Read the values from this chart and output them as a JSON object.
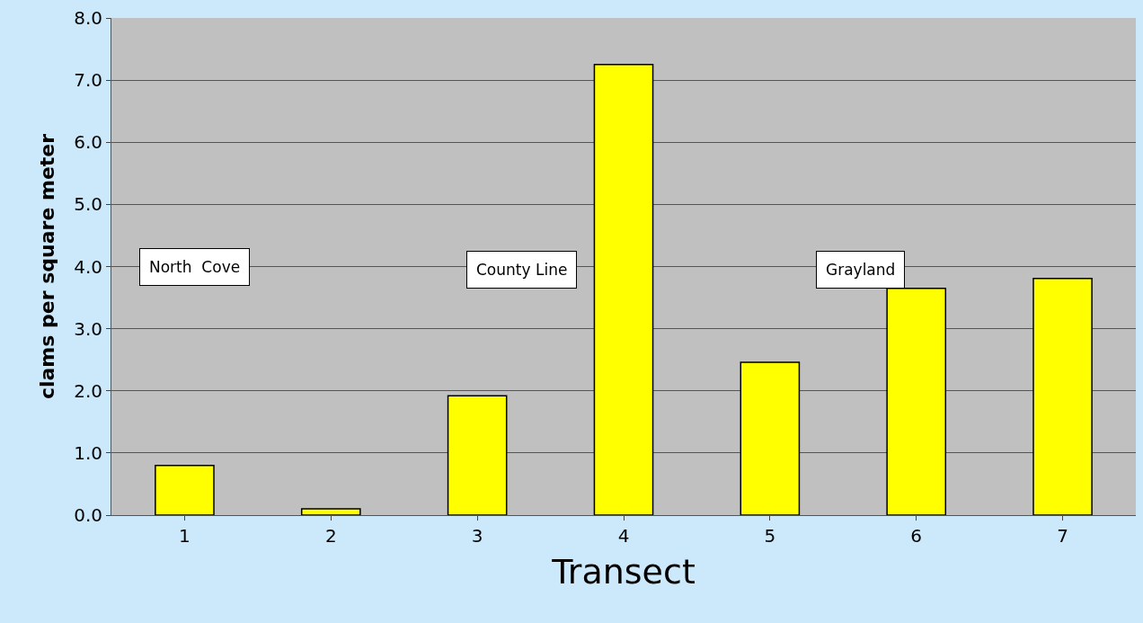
{
  "chart_data": {
    "type": "bar",
    "xlabel": "Transect",
    "ylabel": "clams per square meter",
    "categories": [
      "1",
      "2",
      "3",
      "4",
      "5",
      "6",
      "7"
    ],
    "values": [
      0.8,
      0.1,
      1.92,
      7.25,
      2.46,
      3.65,
      3.81
    ],
    "color": "#ffff00",
    "ylim": [
      0,
      8
    ],
    "yticks": [
      {
        "value": 0,
        "label": "0.0"
      },
      {
        "value": 1,
        "label": "1.0"
      },
      {
        "value": 2,
        "label": "2.0"
      },
      {
        "value": 3,
        "label": "3.0"
      },
      {
        "value": 4,
        "label": "4.0"
      },
      {
        "value": 5,
        "label": "5.0"
      },
      {
        "value": 6,
        "label": "6.0"
      },
      {
        "value": 7,
        "label": "7.0"
      },
      {
        "value": 8,
        "label": "8.0"
      }
    ],
    "grid": "y",
    "annotations": [
      "North  Cove",
      "County Line",
      "Grayland"
    ]
  }
}
